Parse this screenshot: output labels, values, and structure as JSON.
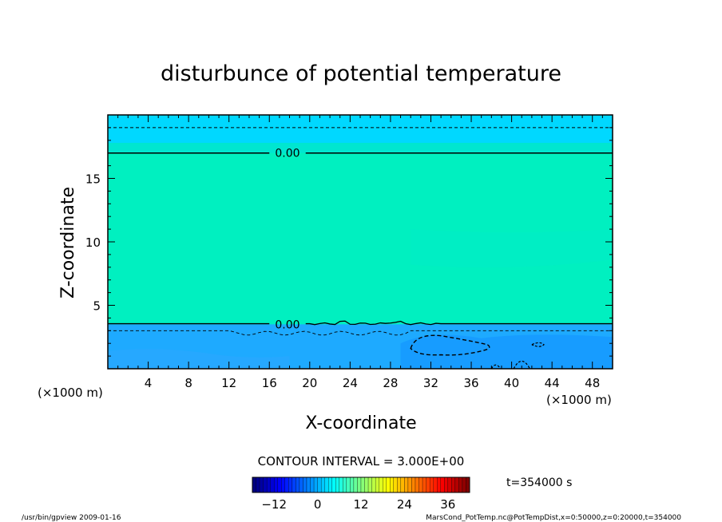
{
  "chart_data": {
    "type": "heatmap",
    "title": "disturbunce of potential temperature",
    "xlabel": "X-coordinate",
    "ylabel": "Z-coordinate",
    "x_unit_left": "(×1000 m)",
    "x_unit_right": "(×1000 m)",
    "xlim": [
      0,
      50
    ],
    "ylim": [
      0,
      20
    ],
    "x_ticks": [
      4,
      8,
      12,
      16,
      20,
      24,
      28,
      32,
      36,
      40,
      44,
      48
    ],
    "y_ticks": [
      5,
      10,
      15
    ],
    "contour_interval_text": "CONTOUR INTERVAL = 3.000E+00",
    "time_text": "t=354000 s",
    "contour_labels": [
      {
        "text": "0.00",
        "x": 17,
        "z": 17
      },
      {
        "text": "0.00",
        "x": 17,
        "z": 3.5
      }
    ],
    "colorbar": {
      "ticks": [
        "−12",
        "0",
        "12",
        "24",
        "36"
      ],
      "min": -18,
      "max": 42
    },
    "field_colors": {
      "upper_band": "#00d8ff",
      "middle": "#00f0c0",
      "upper_mid": "#00e6d0",
      "lower": "#1eaaff",
      "lower_patch": "#1496ff"
    }
  },
  "footer": {
    "left": "/usr/bin/gpview   2009-01-16",
    "right": "MarsCond_PotTemp.nc@PotTempDist,x=0:50000,z=0:20000,t=354000"
  }
}
